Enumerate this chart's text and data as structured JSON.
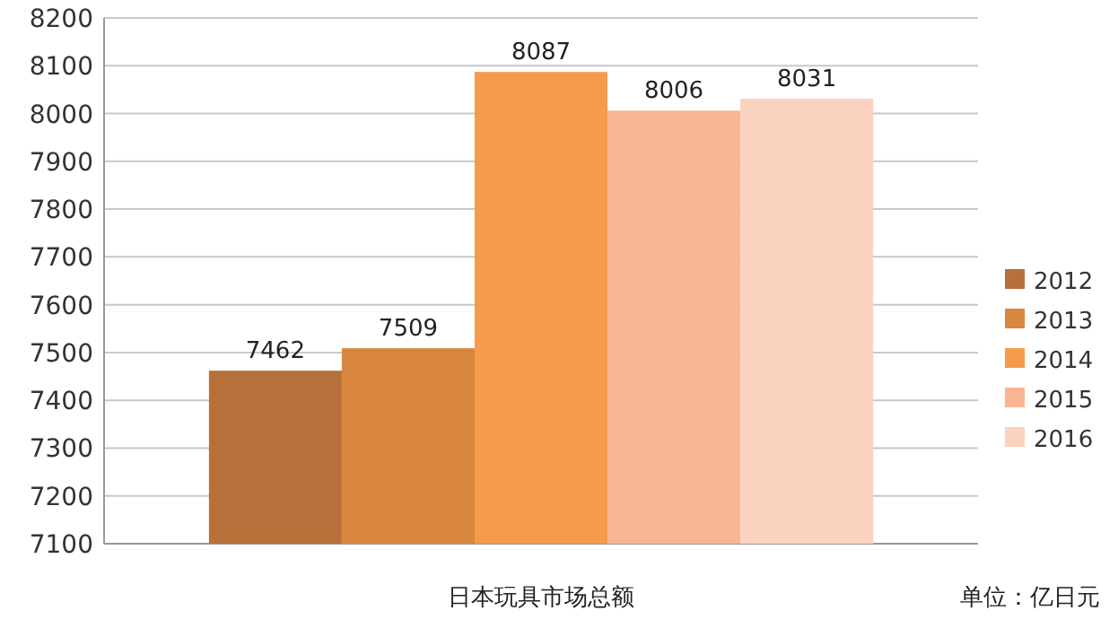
{
  "chart_data": {
    "type": "bar",
    "categories": [
      "日本玩具市场总额"
    ],
    "series": [
      {
        "name": "2012",
        "color": "#b8703a",
        "values": [
          7462
        ]
      },
      {
        "name": "2013",
        "color": "#d9873f",
        "values": [
          7509
        ]
      },
      {
        "name": "2014",
        "color": "#f59b4b",
        "values": [
          8087
        ]
      },
      {
        "name": "2015",
        "color": "#f8b592",
        "values": [
          8006
        ]
      },
      {
        "name": "2016",
        "color": "#fbd2bf",
        "values": [
          8031
        ]
      }
    ],
    "ylim": [
      7100,
      8200
    ],
    "yticks": [
      7100,
      7200,
      7300,
      7400,
      7500,
      7600,
      7700,
      7800,
      7900,
      8000,
      8100,
      8200
    ],
    "grid": "y",
    "legend": "right",
    "data_labels": true,
    "annotations": [
      "单位：亿日元"
    ]
  }
}
